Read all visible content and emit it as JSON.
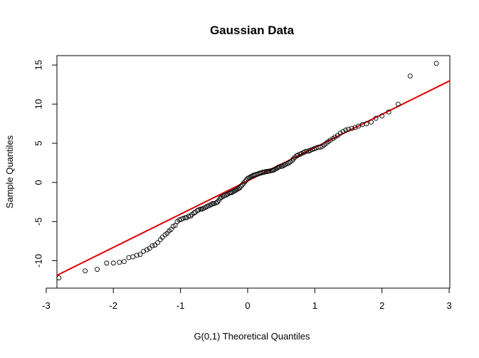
{
  "chart_data": {
    "type": "scatter",
    "title": "Gaussian Data",
    "xlabel": "G(0,1) Theoretical Quantiles",
    "ylabel": "Sample Quantiles",
    "xlim": [
      -2.84,
      3.01
    ],
    "ylim": [
      -13.5,
      16.2
    ],
    "xticks": [
      -3,
      -2,
      -1,
      0,
      1,
      2,
      3
    ],
    "yticks": [
      -10,
      -5,
      0,
      5,
      10,
      15
    ],
    "grid": false,
    "legend": "none",
    "points": [
      [
        -2.81,
        -12.2
      ],
      [
        -2.42,
        -11.3
      ],
      [
        -2.24,
        -11.1
      ],
      [
        -2.1,
        -10.3
      ],
      [
        -2.0,
        -10.3
      ],
      [
        -1.91,
        -10.2
      ],
      [
        -1.84,
        -10.1
      ],
      [
        -1.77,
        -9.6
      ],
      [
        -1.71,
        -9.5
      ],
      [
        -1.65,
        -9.3
      ],
      [
        -1.6,
        -9.2
      ],
      [
        -1.55,
        -8.8
      ],
      [
        -1.5,
        -8.6
      ],
      [
        -1.46,
        -8.4
      ],
      [
        -1.42,
        -8.1
      ],
      [
        -1.38,
        -8.0
      ],
      [
        -1.34,
        -7.7
      ],
      [
        -1.3,
        -7.3
      ],
      [
        -1.27,
        -7.0
      ],
      [
        -1.23,
        -6.7
      ],
      [
        -1.2,
        -6.5
      ],
      [
        -1.17,
        -6.2
      ],
      [
        -1.14,
        -6.0
      ],
      [
        -1.11,
        -5.6
      ],
      [
        -1.08,
        -5.5
      ],
      [
        -1.05,
        -5.0
      ],
      [
        -1.02,
        -4.8
      ],
      [
        -0.99,
        -4.7
      ],
      [
        -0.96,
        -4.6
      ],
      [
        -0.93,
        -4.5
      ],
      [
        -0.91,
        -4.5
      ],
      [
        -0.88,
        -4.3
      ],
      [
        -0.85,
        -4.3
      ],
      [
        -0.83,
        -4.1
      ],
      [
        -0.8,
        -3.9
      ],
      [
        -0.78,
        -3.8
      ],
      [
        -0.75,
        -3.6
      ],
      [
        -0.73,
        -3.5
      ],
      [
        -0.7,
        -3.4
      ],
      [
        -0.68,
        -3.4
      ],
      [
        -0.66,
        -3.3
      ],
      [
        -0.63,
        -3.2
      ],
      [
        -0.61,
        -3.1
      ],
      [
        -0.59,
        -3.0
      ],
      [
        -0.56,
        -2.9
      ],
      [
        -0.54,
        -2.8
      ],
      [
        -0.52,
        -2.7
      ],
      [
        -0.5,
        -2.7
      ],
      [
        -0.47,
        -2.6
      ],
      [
        -0.45,
        -2.5
      ],
      [
        -0.43,
        -2.3
      ],
      [
        -0.41,
        -2.0
      ],
      [
        -0.39,
        -1.9
      ],
      [
        -0.37,
        -1.8
      ],
      [
        -0.35,
        -1.7
      ],
      [
        -0.32,
        -1.6
      ],
      [
        -0.3,
        -1.5
      ],
      [
        -0.28,
        -1.4
      ],
      [
        -0.26,
        -1.3
      ],
      [
        -0.24,
        -1.3
      ],
      [
        -0.22,
        -1.2
      ],
      [
        -0.2,
        -1.1
      ],
      [
        -0.18,
        -1.0
      ],
      [
        -0.16,
        -0.9
      ],
      [
        -0.14,
        -0.8
      ],
      [
        -0.12,
        -0.7
      ],
      [
        -0.1,
        -0.5
      ],
      [
        -0.08,
        -0.3
      ],
      [
        -0.06,
        -0.1
      ],
      [
        -0.04,
        0.1
      ],
      [
        -0.02,
        0.3
      ],
      [
        0.0,
        0.5
      ],
      [
        0.02,
        0.6
      ],
      [
        0.04,
        0.7
      ],
      [
        0.06,
        0.8
      ],
      [
        0.08,
        0.9
      ],
      [
        0.1,
        0.95
      ],
      [
        0.12,
        1.0
      ],
      [
        0.14,
        1.05
      ],
      [
        0.16,
        1.1
      ],
      [
        0.18,
        1.2
      ],
      [
        0.2,
        1.2
      ],
      [
        0.22,
        1.3
      ],
      [
        0.24,
        1.3
      ],
      [
        0.26,
        1.35
      ],
      [
        0.28,
        1.4
      ],
      [
        0.3,
        1.4
      ],
      [
        0.32,
        1.45
      ],
      [
        0.35,
        1.5
      ],
      [
        0.37,
        1.55
      ],
      [
        0.39,
        1.6
      ],
      [
        0.41,
        1.7
      ],
      [
        0.43,
        1.8
      ],
      [
        0.45,
        1.9
      ],
      [
        0.47,
        2.0
      ],
      [
        0.5,
        2.05
      ],
      [
        0.52,
        2.1
      ],
      [
        0.54,
        2.2
      ],
      [
        0.56,
        2.3
      ],
      [
        0.59,
        2.4
      ],
      [
        0.61,
        2.5
      ],
      [
        0.63,
        2.6
      ],
      [
        0.66,
        2.8
      ],
      [
        0.68,
        3.0
      ],
      [
        0.7,
        3.2
      ],
      [
        0.73,
        3.4
      ],
      [
        0.75,
        3.5
      ],
      [
        0.78,
        3.6
      ],
      [
        0.8,
        3.7
      ],
      [
        0.83,
        3.8
      ],
      [
        0.85,
        3.9
      ],
      [
        0.88,
        4.0
      ],
      [
        0.91,
        4.0
      ],
      [
        0.93,
        4.1
      ],
      [
        0.96,
        4.2
      ],
      [
        0.99,
        4.3
      ],
      [
        1.02,
        4.4
      ],
      [
        1.05,
        4.5
      ],
      [
        1.08,
        4.5
      ],
      [
        1.11,
        4.6
      ],
      [
        1.14,
        4.8
      ],
      [
        1.17,
        5.0
      ],
      [
        1.2,
        5.2
      ],
      [
        1.23,
        5.4
      ],
      [
        1.27,
        5.6
      ],
      [
        1.3,
        5.8
      ],
      [
        1.34,
        6.0
      ],
      [
        1.38,
        6.3
      ],
      [
        1.42,
        6.5
      ],
      [
        1.46,
        6.7
      ],
      [
        1.5,
        6.8
      ],
      [
        1.55,
        6.9
      ],
      [
        1.6,
        7.0
      ],
      [
        1.65,
        7.2
      ],
      [
        1.71,
        7.4
      ],
      [
        1.77,
        7.5
      ],
      [
        1.84,
        7.7
      ],
      [
        1.91,
        8.2
      ],
      [
        2.0,
        8.5
      ],
      [
        2.1,
        9.0
      ],
      [
        2.24,
        10.0
      ],
      [
        2.42,
        13.6
      ],
      [
        2.81,
        15.2
      ]
    ],
    "reference_line": {
      "intercept": 0.2,
      "slope": 4.25,
      "color": "#e00000"
    },
    "point_color": "#000000"
  }
}
